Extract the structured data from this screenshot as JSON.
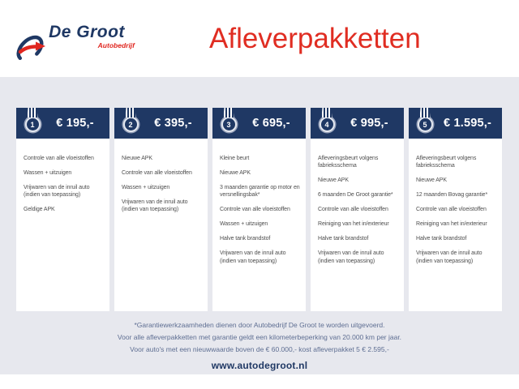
{
  "header": {
    "brand": "De Groot",
    "brand_sub": "Autobedrijf",
    "title": "Afleverpakketten"
  },
  "packages": [
    {
      "number": "1",
      "price": "€ 195,-",
      "items": [
        "Controle van alle vloeistoffen",
        "Wassen + uitzuigen",
        "Vrijwaren van de inruil auto (indien van toepassing)",
        "Geldige APK"
      ]
    },
    {
      "number": "2",
      "price": "€ 395,-",
      "items": [
        "Nieuwe APK",
        "Controle van alle vloeistoffen",
        "Wassen + uitzuigen",
        "Vrijwaren van de inruil auto (indien van toepassing)"
      ]
    },
    {
      "number": "3",
      "price": "€ 695,-",
      "items": [
        "Kleine beurt",
        "Nieuwe APK",
        "3 maanden garantie op motor en versnellingsbak*",
        "Controle van alle vloeistoffen",
        "Wassen + uitzuigen",
        "Halve tank brandstof",
        "Vrijwaren van de inruil auto (indien van toepassing)"
      ]
    },
    {
      "number": "4",
      "price": "€ 995,-",
      "items": [
        "Afleveringsbeurt volgens fabrieksschema",
        "Nieuwe APK",
        "6 maanden De Groot garantie*",
        "Controle van alle vloeistoffen",
        "Reiniging van het in/exterieur",
        "Halve tank brandstof",
        "Vrijwaren van de inruil auto (indien van toepassing)"
      ]
    },
    {
      "number": "5",
      "price": "€ 1.595,-",
      "items": [
        "Afleveringsbeurt volgens fabrieksschema",
        "Nieuwe APK",
        "12 maanden Bovag garantie*",
        "Controle van alle vloeistoffen",
        "Reiniging van het in/exterieur",
        "Halve tank brandstof",
        "Vrijwaren van de inruil auto (indien van toepassing)"
      ]
    }
  ],
  "footer": {
    "notes": [
      "*Garantiewerkzaamheden dienen door Autobedrijf De Groot te worden uitgevoerd.",
      "Voor alle afleverpakketten met garantie geldt een kilometerbeperking van 20.000 km per jaar.",
      "Voor auto's met een nieuwwaarde boven de € 60.000,- kost afleverpakket 5 € 2.595,-"
    ],
    "website": "www.autodegroot.nl"
  },
  "colors": {
    "navy": "#1f3864",
    "red": "#e02d22",
    "panel_background": "#e7e8ee",
    "item_text": "#4e4e4e",
    "note_text": "#5e6e92"
  }
}
